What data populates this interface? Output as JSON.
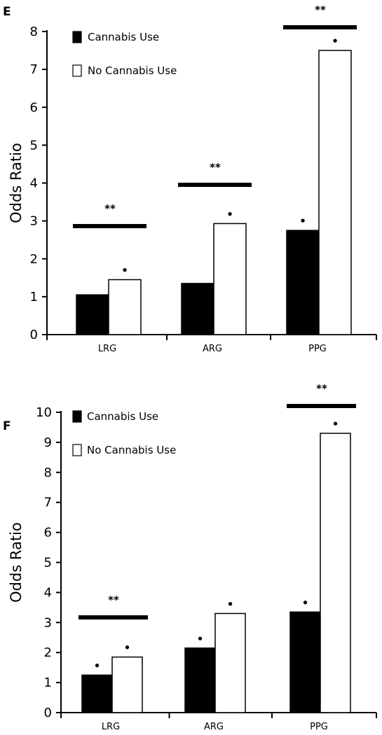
{
  "chart_data": [
    {
      "panel": "E",
      "type": "bar",
      "categories": [
        "LRG",
        "ARG",
        "PPG"
      ],
      "ylabel": "Odds Ratio",
      "ylim": [
        0,
        8
      ],
      "yticks": [
        0,
        1,
        2,
        3,
        4,
        5,
        6,
        7,
        8
      ],
      "legend_placement": "top-left",
      "significance": [
        "**",
        "**",
        "**"
      ],
      "point_marker": "•",
      "series": [
        {
          "name": "Cannabis Use",
          "values": [
            1.05,
            1.35,
            2.75
          ],
          "color": "#000000",
          "points": [
            false,
            false,
            true
          ]
        },
        {
          "name": "No Cannabis Use",
          "values": [
            1.45,
            2.93,
            7.5
          ],
          "color": "#ffffff",
          "points": [
            true,
            true,
            true
          ]
        }
      ]
    },
    {
      "panel": "F",
      "type": "bar",
      "categories": [
        "LRG",
        "ARG",
        "PPG"
      ],
      "ylabel": "Odds Ratio",
      "ylim": [
        0,
        10
      ],
      "yticks": [
        0,
        1,
        2,
        3,
        4,
        5,
        6,
        7,
        8,
        9,
        10
      ],
      "legend_placement": "top-left",
      "significance": [
        "**",
        "",
        "**"
      ],
      "point_marker": "•",
      "series": [
        {
          "name": "Cannabis Use",
          "values": [
            1.25,
            2.15,
            3.35
          ],
          "color": "#000000",
          "points": [
            true,
            true,
            true
          ]
        },
        {
          "name": "No Cannabis Use",
          "values": [
            1.85,
            3.3,
            9.3
          ],
          "color": "#ffffff",
          "points": [
            true,
            true,
            true
          ]
        }
      ]
    }
  ]
}
